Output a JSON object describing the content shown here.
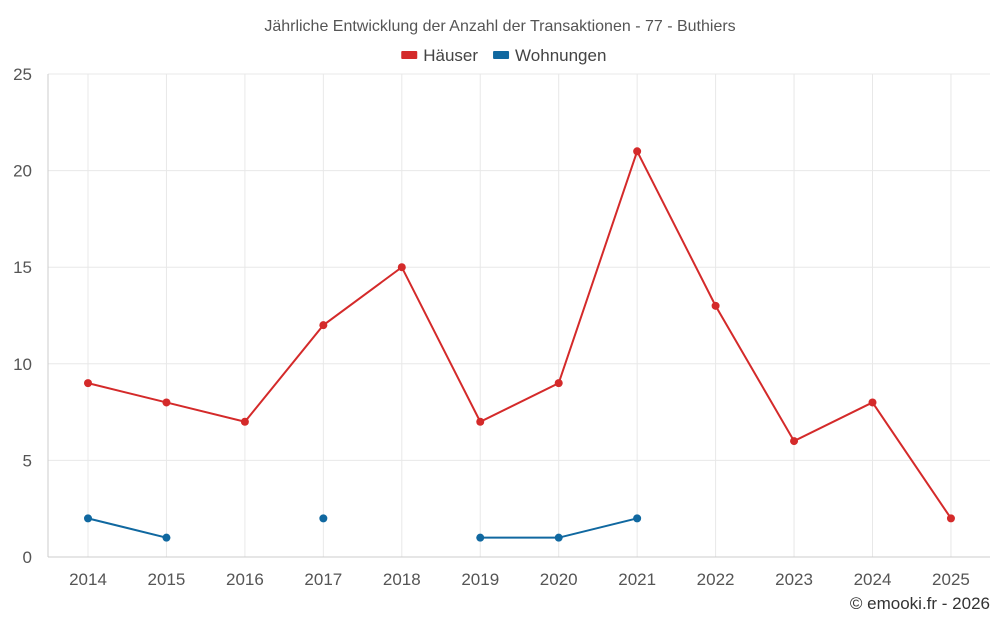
{
  "chart_data": {
    "type": "line",
    "title": "Jährliche Entwicklung der Anzahl der Transaktionen - 77 - Buthiers",
    "xlabel": "",
    "ylabel": "",
    "categories": [
      "2014",
      "2015",
      "2016",
      "2017",
      "2018",
      "2019",
      "2020",
      "2021",
      "2022",
      "2023",
      "2024",
      "2025"
    ],
    "ylim": [
      0,
      25
    ],
    "yticks": [
      "0",
      "5",
      "10",
      "15",
      "20",
      "25"
    ],
    "grid": true,
    "legend_position": "top-center",
    "series": [
      {
        "name": "Häuser",
        "color": "#d42a2a",
        "values": [
          9,
          8,
          7,
          12,
          15,
          7,
          9,
          21,
          13,
          6,
          8,
          2
        ]
      },
      {
        "name": "Wohnungen",
        "color": "#1068a0",
        "values": [
          2,
          1,
          null,
          2,
          null,
          1,
          1,
          2,
          null,
          null,
          null,
          null
        ]
      }
    ]
  },
  "credit": "© emooki.fr - 2026"
}
